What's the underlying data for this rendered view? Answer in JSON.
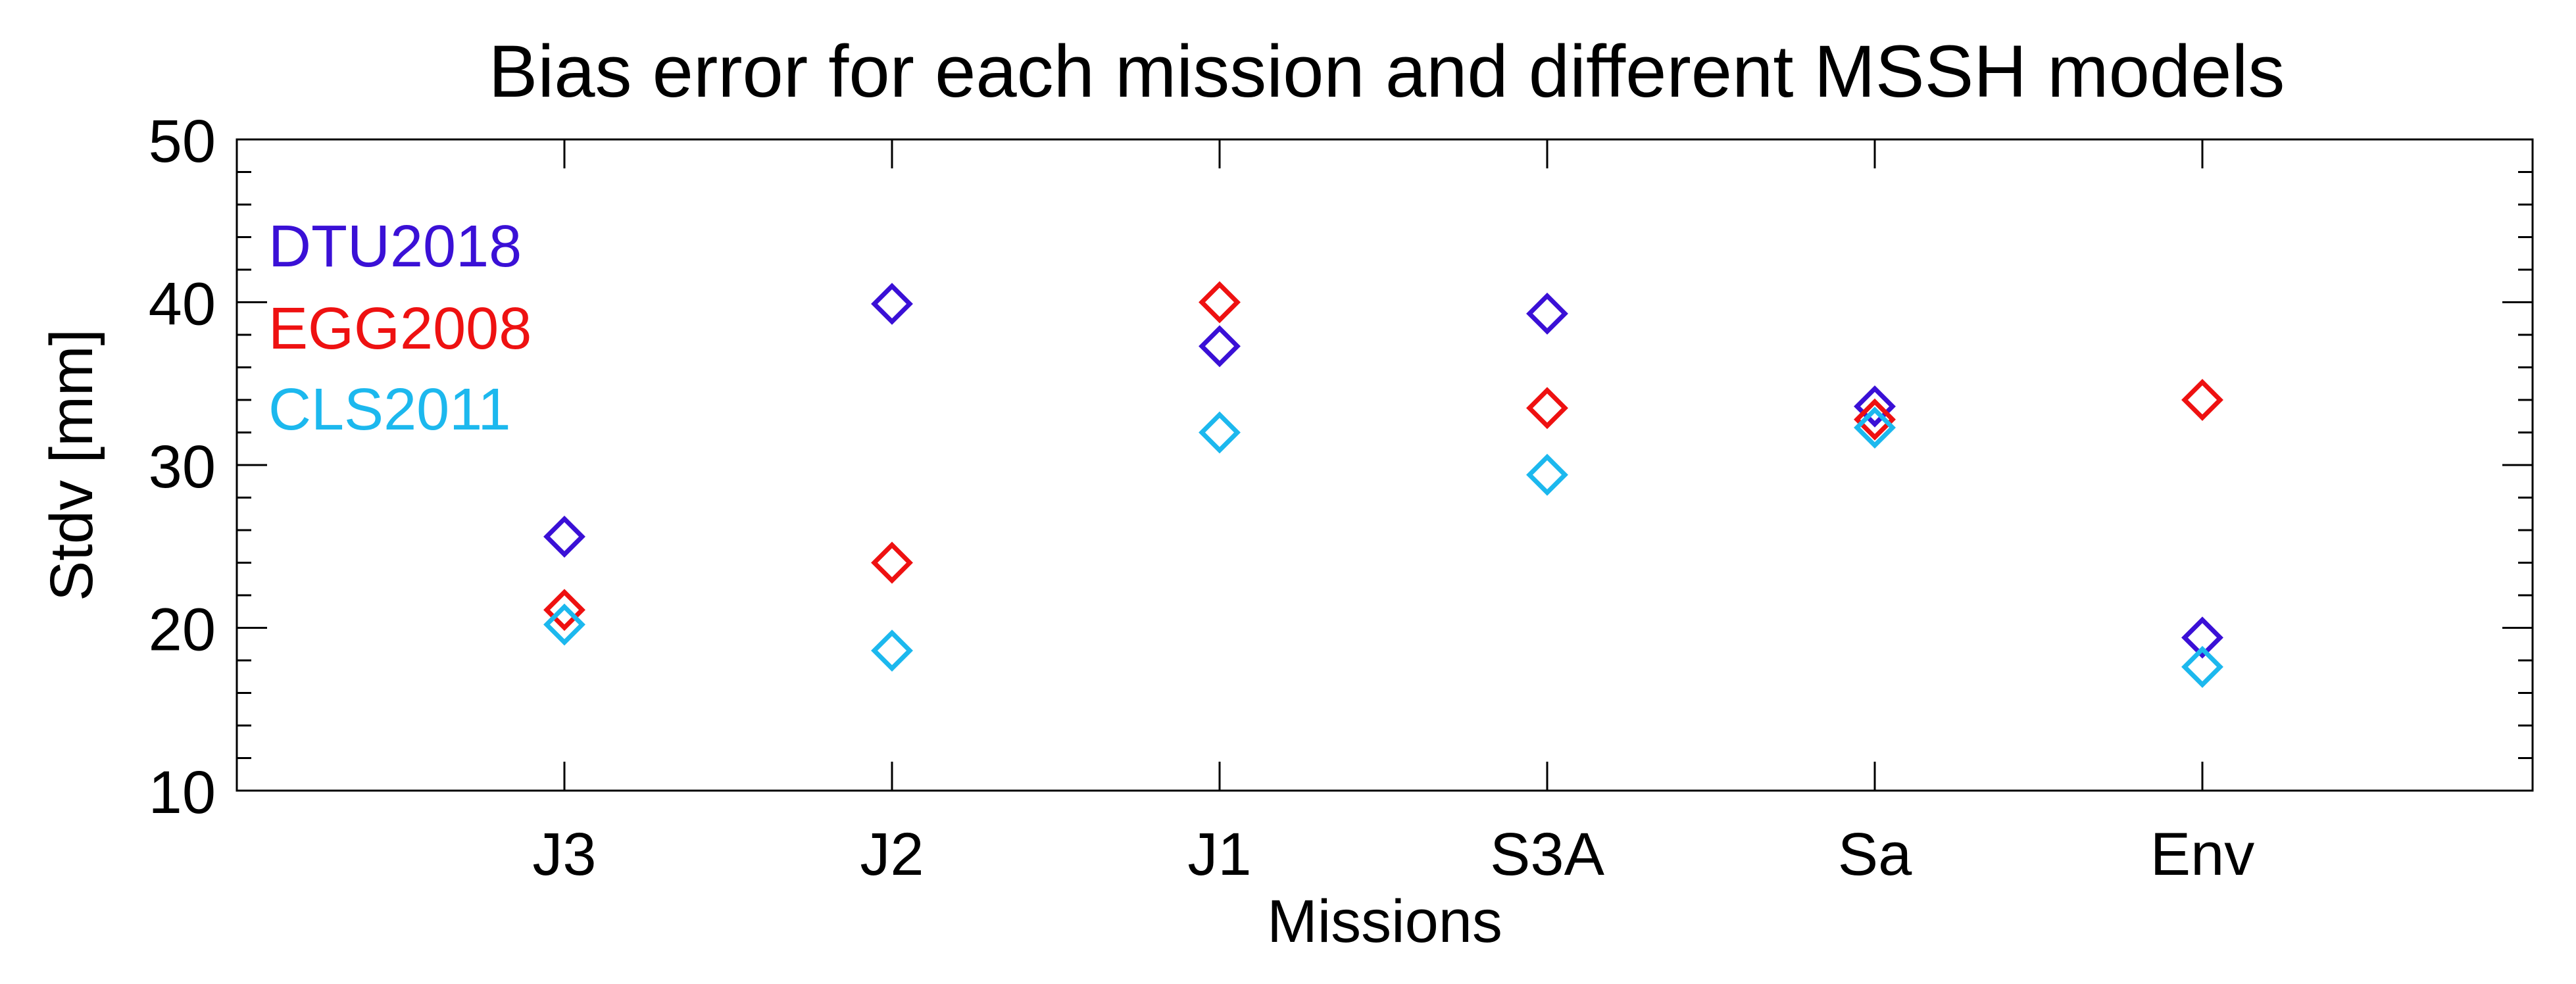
{
  "chart_data": {
    "type": "scatter",
    "title": "Bias error for each mission and different MSSH models",
    "xlabel": "Missions",
    "ylabel": "Stdv [mm]",
    "categories": [
      "J3",
      "J2",
      "J1",
      "S3A",
      "Sa",
      "Env"
    ],
    "ylim": [
      10,
      50
    ],
    "yticks": [
      "10",
      "20",
      "30",
      "40",
      "50"
    ],
    "legend_position": "top-left",
    "marker": "diamond",
    "series": [
      {
        "name": "DTU2018",
        "color": "#3a10d6",
        "values": [
          25.6,
          39.9,
          37.3,
          39.3,
          33.6,
          19.4
        ]
      },
      {
        "name": "EGG2008",
        "color": "#ee1111",
        "values": [
          21.1,
          24.0,
          40.0,
          33.5,
          32.8,
          34.0
        ]
      },
      {
        "name": "CLS2011",
        "color": "#1cb8ee",
        "values": [
          20.2,
          18.6,
          32.0,
          29.4,
          32.3,
          17.6
        ]
      }
    ]
  }
}
